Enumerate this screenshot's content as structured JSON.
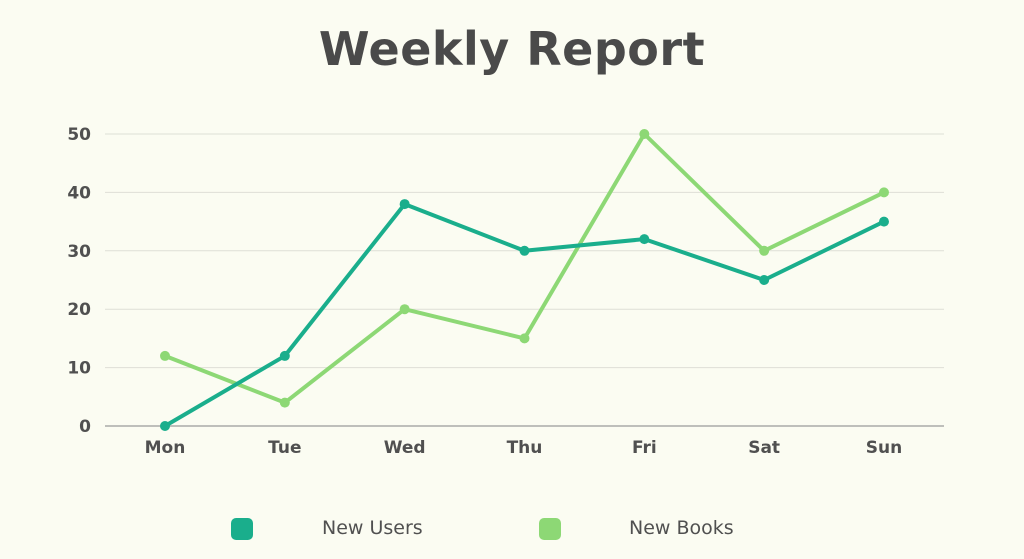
{
  "colors": {
    "background": "#fbfcf2",
    "text": "#4a4a4a",
    "gridline": "#dedfd6",
    "axis": "#9a9a9a",
    "new_users": "#1aae8c",
    "new_books": "#8dd875"
  },
  "chart_data": {
    "type": "line",
    "title": "Weekly Report",
    "xlabel": "",
    "ylabel": "",
    "categories": [
      "Mon",
      "Tue",
      "Wed",
      "Thu",
      "Fri",
      "Sat",
      "Sun"
    ],
    "ylim": [
      0,
      50
    ],
    "yticks": [
      "0",
      "10",
      "20",
      "30",
      "40",
      "50"
    ],
    "grid": true,
    "legend_position": "bottom",
    "series": [
      {
        "name": "New Users",
        "values": [
          0,
          12,
          38,
          30,
          32,
          25,
          35
        ],
        "color": "#1aae8c"
      },
      {
        "name": "New Books",
        "values": [
          12,
          4,
          20,
          15,
          50,
          30,
          40
        ],
        "color": "#8dd875"
      }
    ]
  }
}
